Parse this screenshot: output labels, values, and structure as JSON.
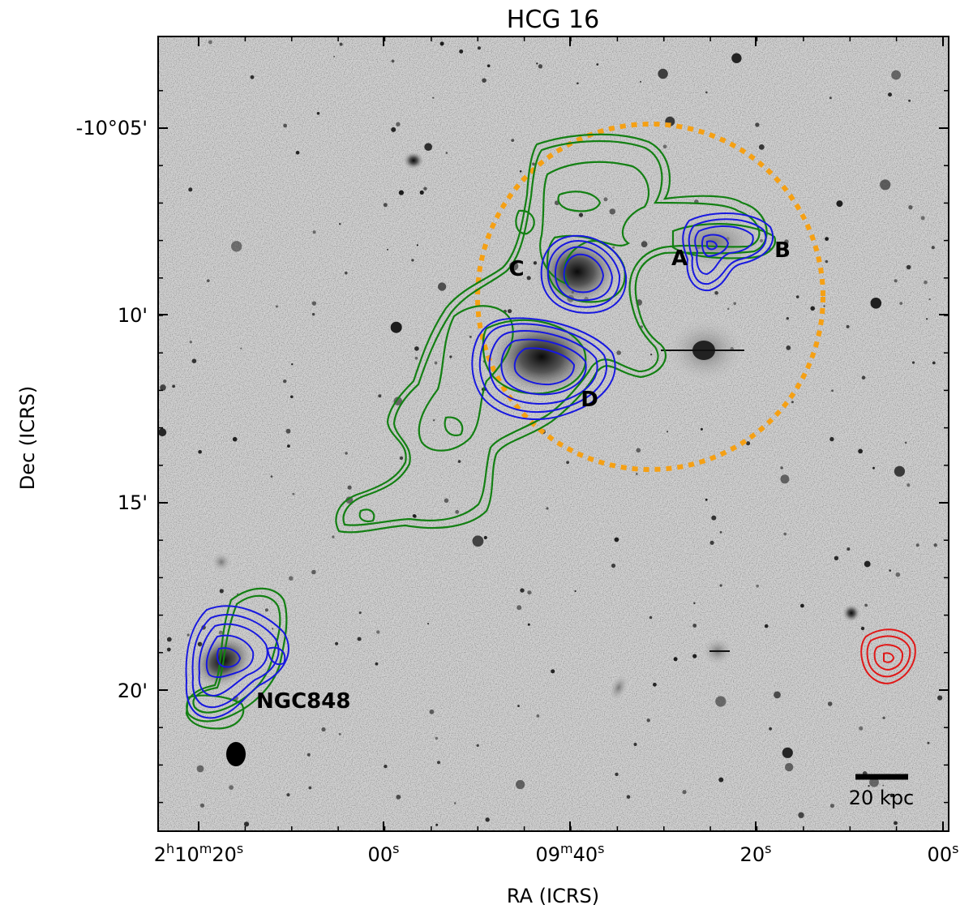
{
  "figure": {
    "title": "HCG 16",
    "xlabel": "RA (ICRS)",
    "ylabel": "Dec (ICRS)",
    "dec_ticks": [
      "-10°05'",
      "10'",
      "15'",
      "20'"
    ],
    "ra_ticks": [
      {
        "main": "2",
        "sup1": "h",
        "mid": "10",
        "sup2": "m",
        "end": "20",
        "sup3": "s"
      },
      {
        "main": "00",
        "sup3": "s"
      },
      {
        "main": "09",
        "sup2": "m",
        "end": "40",
        "sup3": "s"
      },
      {
        "main": "20",
        "sup3": "s"
      },
      {
        "main": "00",
        "sup3": "s"
      }
    ],
    "galaxy_labels": [
      "A",
      "B",
      "C",
      "D",
      "NGC848"
    ],
    "scale_bar_label": "20 kpc",
    "colors": {
      "green_contours": "#138013",
      "blue_contours": "#1818e0",
      "red_contours": "#e01818",
      "orange_circle": "#f5a014",
      "background": "#d4d4d4"
    }
  }
}
